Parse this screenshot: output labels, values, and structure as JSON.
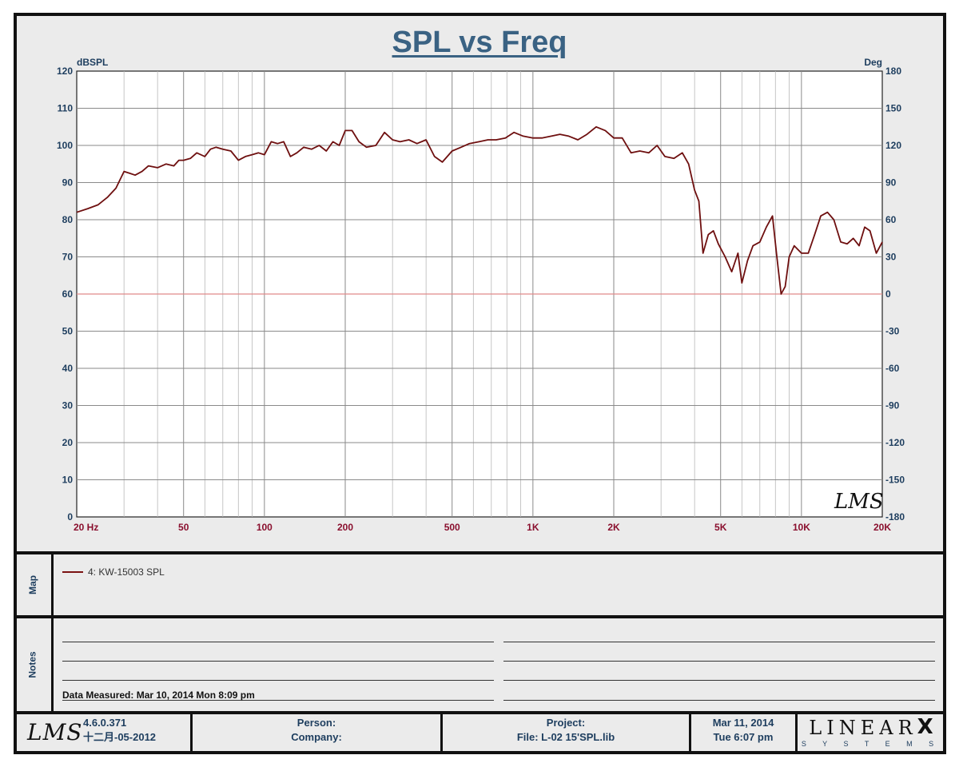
{
  "chart_data": {
    "type": "line",
    "title": "SPL vs Freq",
    "ylabel": "dBSPL",
    "ylabel_right": "Deg",
    "x_scale": "log",
    "xlim": [
      20,
      20000
    ],
    "ylim": [
      0,
      120
    ],
    "ylim_right": [
      -180,
      180
    ],
    "grid": true,
    "x_ticks": [
      {
        "value": 20,
        "label": "20  Hz"
      },
      {
        "value": 50,
        "label": "50"
      },
      {
        "value": 100,
        "label": "100"
      },
      {
        "value": 200,
        "label": "200"
      },
      {
        "value": 500,
        "label": "500"
      },
      {
        "value": 1000,
        "label": "1K"
      },
      {
        "value": 2000,
        "label": "2K"
      },
      {
        "value": 5000,
        "label": "5K"
      },
      {
        "value": 10000,
        "label": "10K"
      },
      {
        "value": 20000,
        "label": "20K"
      }
    ],
    "y_ticks": [
      0,
      10,
      20,
      30,
      40,
      50,
      60,
      70,
      80,
      90,
      100,
      110,
      120
    ],
    "y_ticks_right": [
      "-180",
      "-150",
      "-120",
      "-90",
      "-60",
      "-30",
      "0",
      "30",
      "60",
      "90",
      "120",
      "150",
      "180"
    ],
    "reference_line": {
      "y": 60,
      "color": "#e08a8a"
    },
    "series": [
      {
        "name": "4: KW-15003  SPL",
        "color": "#6e0f0f",
        "x": [
          20,
          22,
          24,
          26,
          28,
          30,
          31.5,
          33,
          35,
          37,
          40,
          43,
          46,
          48,
          50,
          53,
          56,
          60,
          63,
          66,
          70,
          75,
          80,
          85,
          90,
          95,
          100,
          106,
          112,
          118,
          125,
          132,
          140,
          150,
          160,
          170,
          180,
          190,
          200,
          212,
          225,
          240,
          260,
          280,
          300,
          320,
          345,
          370,
          400,
          430,
          460,
          500,
          540,
          580,
          630,
          680,
          730,
          790,
          850,
          920,
          1000,
          1080,
          1170,
          1260,
          1360,
          1470,
          1590,
          1720,
          1860,
          2000,
          2150,
          2320,
          2500,
          2700,
          2900,
          3100,
          3350,
          3600,
          3800,
          4000,
          4150,
          4300,
          4500,
          4700,
          4900,
          5200,
          5500,
          5800,
          6000,
          6300,
          6600,
          7000,
          7400,
          7800,
          8100,
          8400,
          8700,
          9000,
          9400,
          10000,
          10600,
          11200,
          11800,
          12500,
          13200,
          14000,
          14800,
          15600,
          16400,
          17200,
          18000,
          19000,
          20000
        ],
        "values": [
          82,
          83,
          84,
          86,
          88.5,
          93,
          92.5,
          92,
          93,
          94.5,
          94,
          95,
          94.5,
          96,
          96,
          96.5,
          98,
          97,
          99,
          99.5,
          99,
          98.5,
          96,
          97,
          97.5,
          98,
          97.5,
          101,
          100.5,
          101,
          97,
          98,
          99.5,
          99,
          100,
          98.5,
          101,
          100,
          104,
          104,
          101,
          99.5,
          100,
          103.5,
          101.5,
          101,
          101.5,
          100.5,
          101.5,
          97,
          95.5,
          98.5,
          99.5,
          100.5,
          101,
          101.5,
          101.5,
          102,
          103.5,
          102.5,
          102,
          102,
          102.5,
          103,
          102.5,
          101.5,
          103,
          105,
          104,
          102,
          102,
          98,
          98.5,
          98,
          100,
          97,
          96.5,
          98,
          95,
          88,
          85,
          71,
          76,
          77,
          73.5,
          70,
          66,
          71,
          63,
          69,
          73,
          74,
          78,
          81,
          70,
          60,
          62,
          70,
          73,
          71,
          71,
          76,
          81,
          82,
          80,
          74,
          73.5,
          75,
          73,
          78,
          77,
          71,
          74
        ]
      }
    ]
  },
  "map": {
    "label": "Map",
    "legend": [
      {
        "label": "4: KW-15003  SPL",
        "color": "#6e0f0f"
      }
    ]
  },
  "notes": {
    "label": "Notes",
    "data_measured": "Data Measured: Mar 10, 2014  Mon  8:09 pm"
  },
  "footer": {
    "logo": "LMS",
    "version": "4.6.0.371",
    "build_date": "十二月-05-2012",
    "person": "Person:",
    "company": "Company:",
    "project": "Project:",
    "file": "File: L-02 15'SPL.lib",
    "date": "Mar 11, 2014",
    "time": "Tue  6:07 pm",
    "brand": "LINEAR",
    "brand_x": "X",
    "brand_sub": "S Y S T E M S"
  },
  "watermark": "LMS",
  "colors": {
    "title": "#3a6283",
    "axis_text": "#1d3d5e",
    "x_tick_text": "#8a0f2e",
    "curve": "#6e0f0f"
  }
}
